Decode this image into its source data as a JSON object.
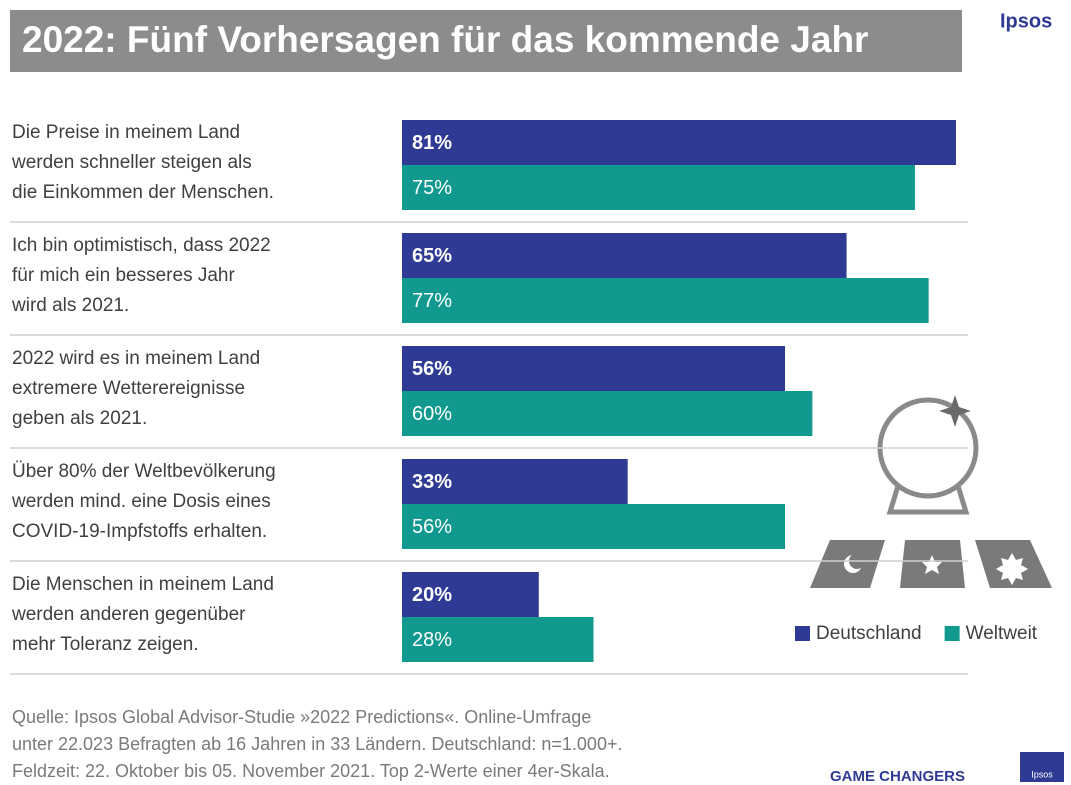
{
  "chart_data": {
    "type": "barh",
    "title": "2022: Fünf Vorhersagen für das kommende Jahr",
    "brand": "Ipsos",
    "categories": [
      [
        "Die Preise in meinem Land",
        "werden schneller steigen als",
        "die Einkommen der Menschen."
      ],
      [
        "Ich bin optimistisch, dass 2022",
        "für mich ein besseres  Jahr",
        "wird als 2021."
      ],
      [
        "2022 wird es in meinem Land",
        "extremere  Wetterereignisse",
        "geben als 2021."
      ],
      [
        "Über 80% der Weltbevölkerung",
        "werden mind. eine Dosis eines",
        "COVID-19-Impfstoffs  erhalten."
      ],
      [
        "Die Menschen  in meinem Land",
        "werden anderen gegenüber",
        "mehr Toleranz  zeigen."
      ]
    ],
    "series": [
      {
        "name": "Deutschland",
        "color": "#2e3a94",
        "values": [
          81,
          65,
          56,
          33,
          20
        ],
        "value_labels": [
          "81%",
          "65%",
          "56%",
          "33%",
          "20%"
        ]
      },
      {
        "name": "Weltweit",
        "color": "#12998f",
        "values": [
          75,
          77,
          60,
          56,
          28
        ],
        "value_labels": [
          "75%",
          "77%",
          "60%",
          "56%",
          "28%"
        ]
      }
    ],
    "legend": "lower right",
    "source": [
      "Quelle: Ipsos Global Advisor-Studie  »2022 Predictions«. Online-Umfrage",
      "unter 22.023 Befragten ab 16 Jahren in 33 Ländern. Deutschland: n=1.000+.",
      "Feldzeit: 22. Oktober bis 05. November  2021. Top 2-Werte einer 4er-Skala."
    ],
    "footer": "GAME CHANGERS"
  }
}
